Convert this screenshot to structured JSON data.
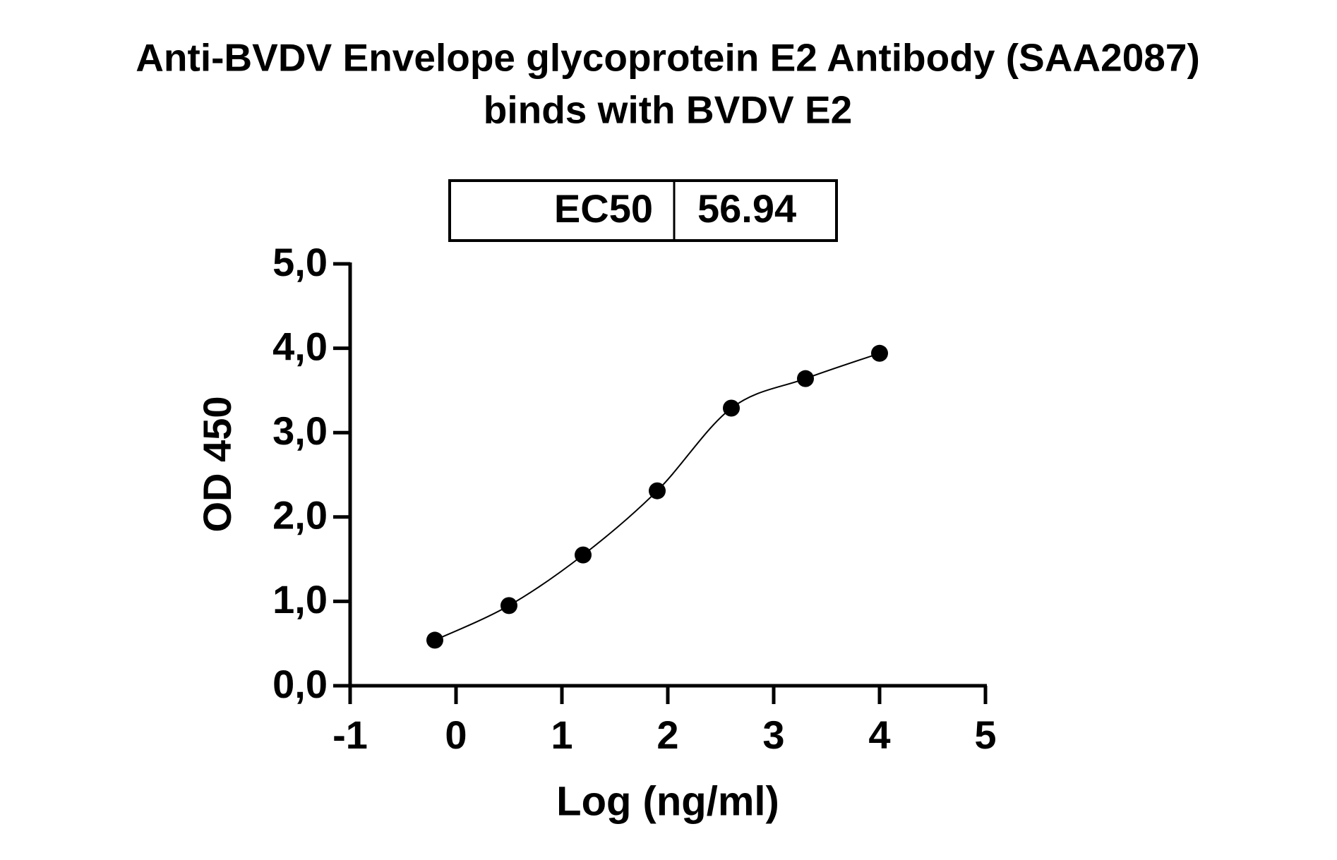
{
  "chart_data": {
    "type": "line",
    "title": "Anti-BVDV Envelope glycoprotein E2 Antibody (SAA2087)",
    "subtitle": "binds with BVDV E2",
    "x_label": "Log (ng/ml)",
    "y_label": "OD 450",
    "ec50_table": {
      "label": "EC50",
      "value": 56.94
    },
    "x": [
      -0.2,
      0.5,
      1.2,
      1.9,
      2.6,
      3.3,
      4.0
    ],
    "series": [
      {
        "color": "#000000",
        "values": [
          0.54,
          0.95,
          1.55,
          2.31,
          3.29,
          3.64,
          3.94
        ]
      }
    ],
    "xlim": [
      -1,
      5
    ],
    "xticks": [
      -1,
      0,
      1,
      2,
      3,
      4,
      5
    ],
    "ylim": [
      0,
      5
    ],
    "yticks": [
      {
        "value": 0,
        "label": "0,0"
      },
      {
        "value": 1,
        "label": "1,0"
      },
      {
        "value": 2,
        "label": "2,0"
      },
      {
        "value": 3,
        "label": "3,0"
      },
      {
        "value": 4,
        "label": "4,0"
      },
      {
        "value": 5,
        "label": "5,0"
      }
    ],
    "grid": false
  }
}
